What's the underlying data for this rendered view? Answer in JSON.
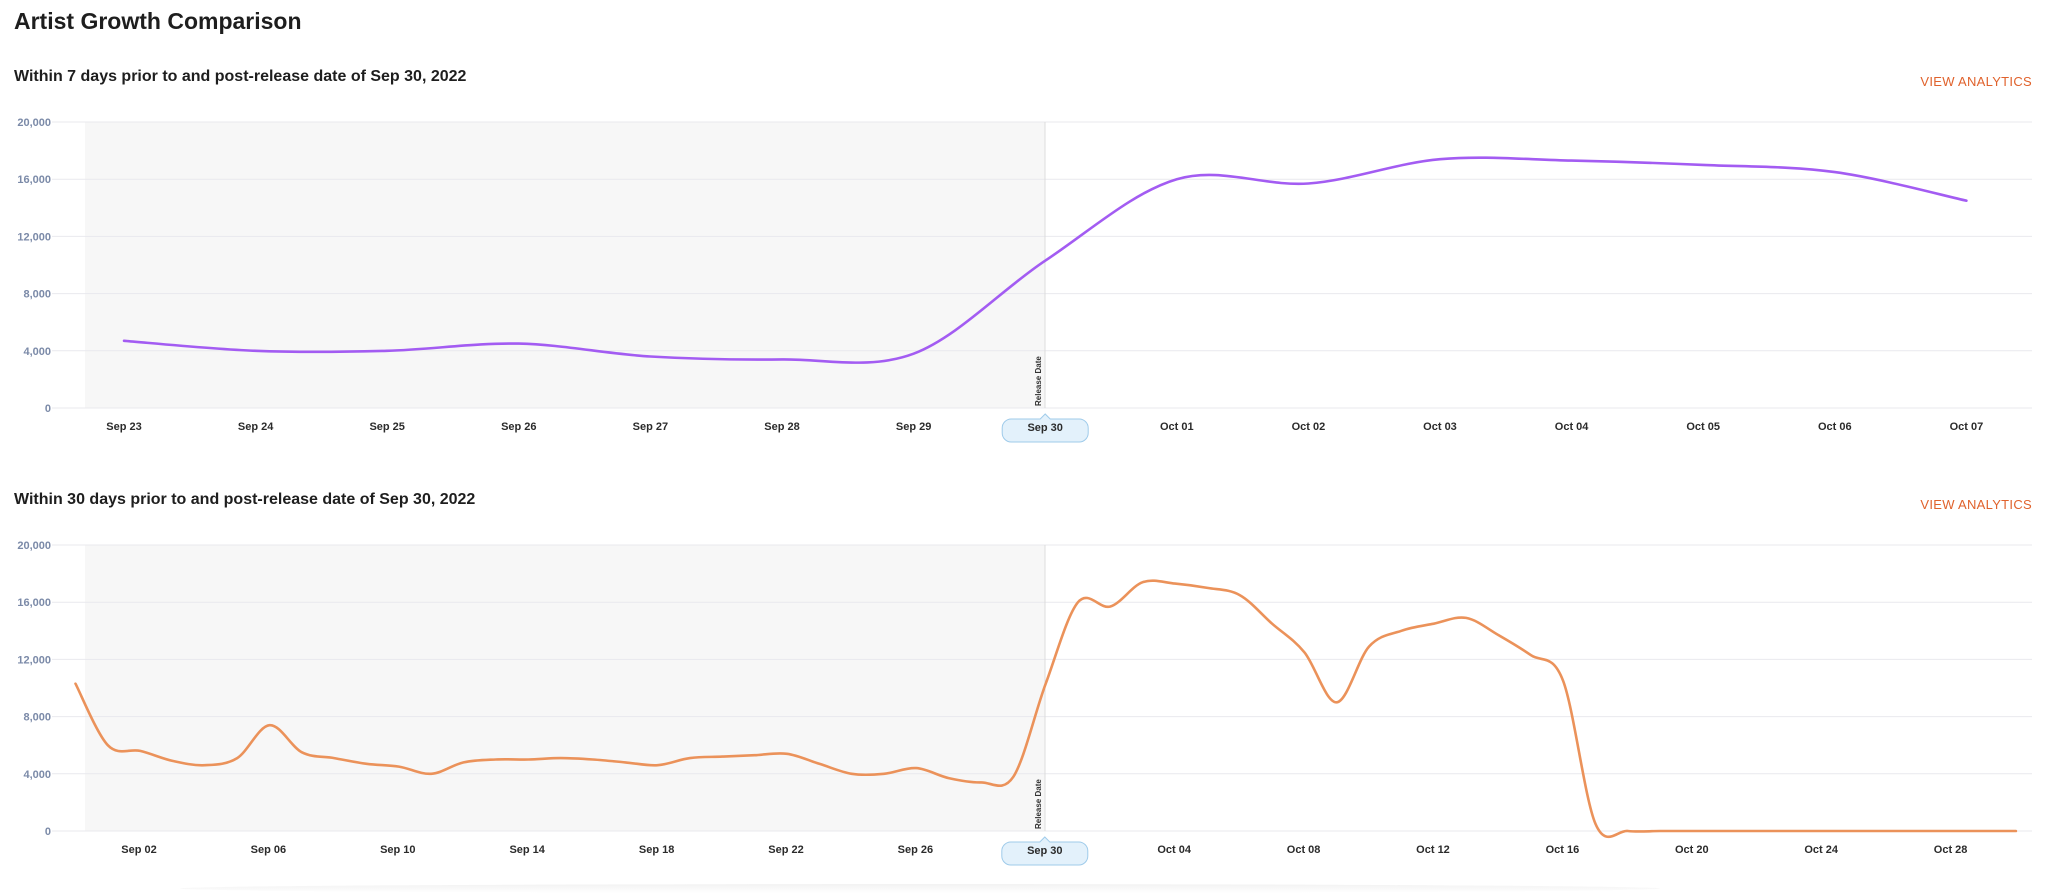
{
  "page": {
    "title": "Artist Growth Comparison"
  },
  "sections": [
    {
      "title": "Within 7 days prior to and post-release date of Sep 30, 2022",
      "link": "VIEW ANALYTICS"
    },
    {
      "title": "Within 30 days prior to and post-release date of Sep 30, 2022",
      "link": "VIEW ANALYTICS"
    }
  ],
  "colors": {
    "chart1": "#a35cf2",
    "chart2": "#eb925a",
    "link": "#e0622c",
    "shade": "#f7f7f7"
  },
  "chart_data": [
    {
      "type": "line",
      "title": "Within 7 days prior to and post-release date of Sep 30, 2022",
      "release_date": "Sep 30",
      "release_label": "Release Date",
      "ylim": [
        0,
        20000
      ],
      "yticks": [
        "0",
        "4,000",
        "8,000",
        "12,000",
        "16,000",
        "20,000"
      ],
      "x_labels": [
        "Sep 23",
        "Sep 24",
        "Sep 25",
        "Sep 26",
        "Sep 27",
        "Sep 28",
        "Sep 29",
        "Sep 30",
        "Oct 01",
        "Oct 02",
        "Oct 03",
        "Oct 04",
        "Oct 05",
        "Oct 06",
        "Oct 07"
      ],
      "series": [
        {
          "values": [
            4700,
            4000,
            4000,
            4500,
            3600,
            3400,
            3800,
            10300,
            16000,
            15700,
            17400,
            17300,
            17000,
            16500,
            14500
          ]
        }
      ]
    },
    {
      "type": "line",
      "title": "Within 30 days prior to and post-release date of Sep 30, 2022",
      "release_date": "Sep 30",
      "release_label": "Release Date",
      "ylim": [
        0,
        20000
      ],
      "yticks": [
        "0",
        "4,000",
        "8,000",
        "12,000",
        "16,000",
        "20,000"
      ],
      "x_labels": [
        "Sep 02",
        "Sep 06",
        "Sep 10",
        "Sep 14",
        "Sep 18",
        "Sep 22",
        "Sep 26",
        "Sep 30",
        "Oct 04",
        "Oct 08",
        "Oct 12",
        "Oct 16",
        "Oct 20",
        "Oct 24",
        "Oct 28"
      ],
      "x_start": "Aug 31",
      "x_end": "Oct 30",
      "series": [
        {
          "values": [
            10300,
            6000,
            5600,
            4900,
            4600,
            5100,
            7400,
            5500,
            5100,
            4700,
            4500,
            4000,
            4800,
            5000,
            5000,
            5100,
            5000,
            4800,
            4600,
            5100,
            5200,
            5300,
            5400,
            4700,
            4000,
            4000,
            4400,
            3700,
            3400,
            3800,
            10300,
            16000,
            15700,
            17400,
            17300,
            17000,
            16500,
            14500,
            12500,
            9000,
            12900,
            14000,
            14500,
            14900,
            13700,
            12300,
            10500,
            500,
            0,
            0,
            0,
            0,
            0,
            0,
            0,
            0,
            0,
            0,
            0,
            0,
            0
          ]
        }
      ]
    }
  ]
}
